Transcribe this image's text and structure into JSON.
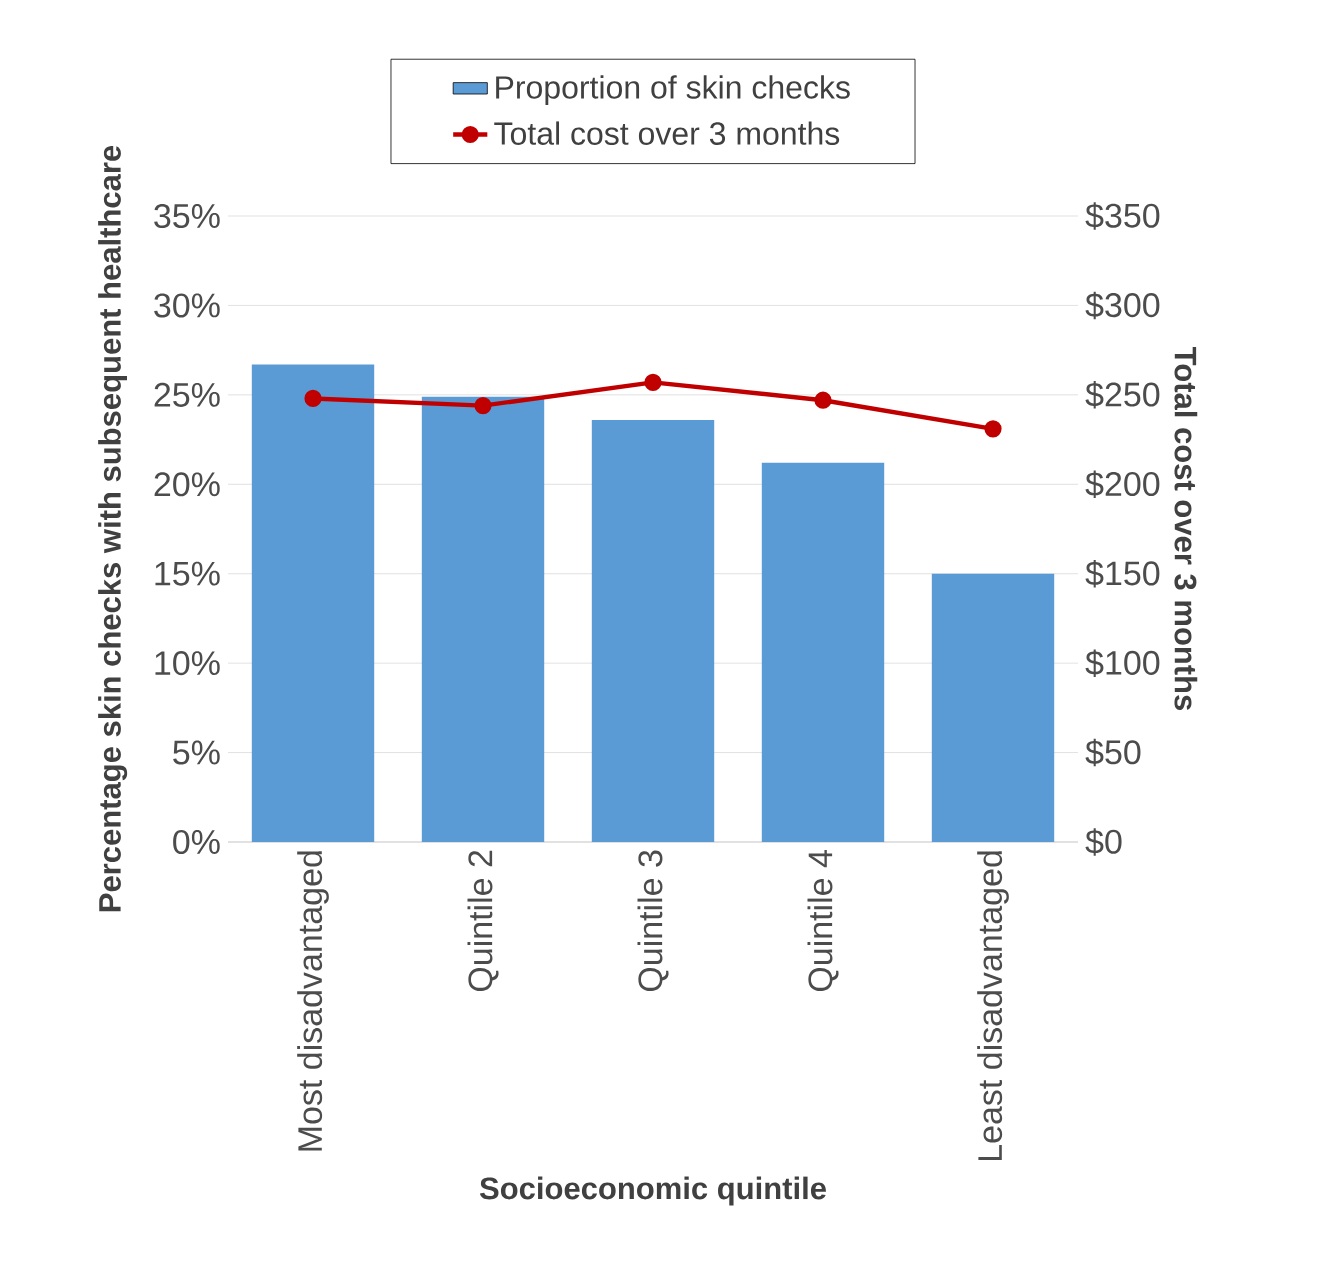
{
  "chart_data": {
    "type": "bar",
    "xlabel": "Socioeconomic quintile",
    "ylabel": "Percentage skin checks with subsequent healthcare",
    "y2label": "Total cost over 3 months",
    "categories": [
      "Most disadvantaged",
      "Quintile 2",
      "Quintile 3",
      "Quintile 4",
      "Least disadvantaged"
    ],
    "series": [
      {
        "name": "Proportion of skin checks",
        "color": "#5b9bd5",
        "values": [
          26.7,
          24.9,
          23.6,
          21.2,
          15.0
        ]
      },
      {
        "name": "Total cost over 3 months",
        "type": "line",
        "axis": "y2",
        "color": "#c00000",
        "marker": "circle",
        "values": [
          248,
          244,
          257,
          247,
          231
        ]
      }
    ],
    "ylim": [
      0,
      35
    ],
    "yticks": [
      {
        "value": 0,
        "label": "0%"
      },
      {
        "value": 5,
        "label": "5%"
      },
      {
        "value": 10,
        "label": "10%"
      },
      {
        "value": 15,
        "label": "15%"
      },
      {
        "value": 20,
        "label": "20%"
      },
      {
        "value": 25,
        "label": "25%"
      },
      {
        "value": 30,
        "label": "30%"
      },
      {
        "value": 35,
        "label": "35%"
      }
    ],
    "y2lim": [
      0,
      350
    ],
    "y2ticks": [
      {
        "value": 0,
        "label": "$0"
      },
      {
        "value": 50,
        "label": "$50"
      },
      {
        "value": 100,
        "label": "$100"
      },
      {
        "value": 150,
        "label": "$150"
      },
      {
        "value": 200,
        "label": "$200"
      },
      {
        "value": 250,
        "label": "$250"
      },
      {
        "value": 300,
        "label": "$300"
      },
      {
        "value": 350,
        "label": "$350"
      }
    ],
    "grid": "y",
    "legend": "top"
  }
}
